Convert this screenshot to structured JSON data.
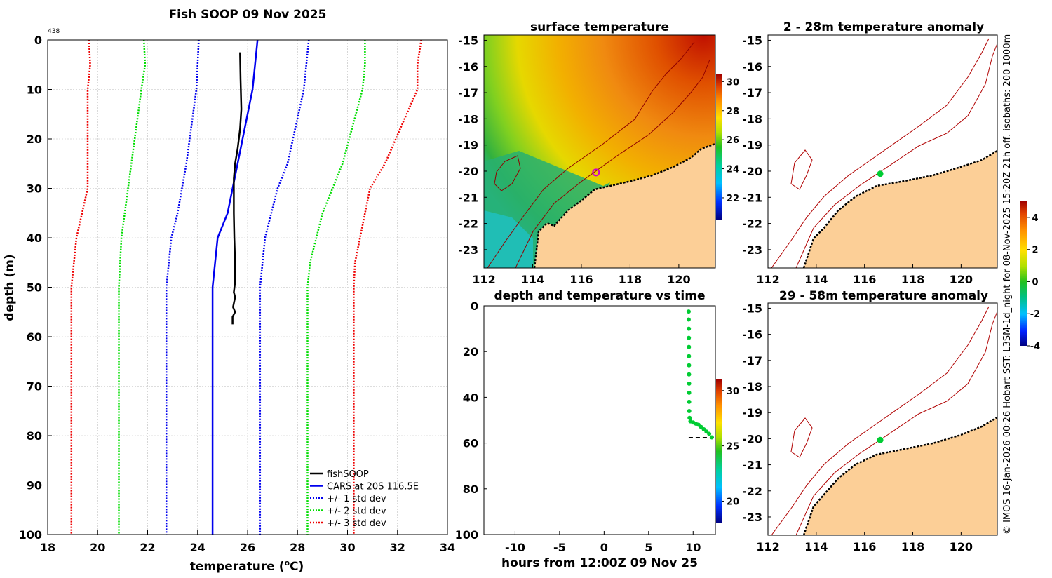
{
  "colors": {
    "fishsoop": "#000000",
    "cars": "#0000ee",
    "std1": "#0000ee",
    "std2": "#00dd00",
    "std3": "#ee0000",
    "land": "#fccf97",
    "isobath": "#b00000",
    "marker": "#00cc33",
    "grid": "#cccccc"
  },
  "copyright": "© IMOS 16-Jan-2026 00:26 Hobart SST: L3SM-1d_night for 08-Nov-2025 15:20Z 21h off. isobaths: 200  1000m",
  "chart_data": [
    {
      "id": "profile",
      "type": "line",
      "title": "Fish SOOP 09 Nov 2025",
      "id_label": "438",
      "xlabel": "temperature (°C)",
      "xlabel_main": "temperature (",
      "xlabel_sup": "o",
      "xlabel_end": "C)",
      "ylabel": "depth (m)",
      "xlim": [
        18,
        34
      ],
      "ylim": [
        0,
        100
      ],
      "y_reversed": true,
      "xticks": [
        18,
        20,
        22,
        24,
        26,
        28,
        30,
        32,
        34
      ],
      "yticks": [
        0,
        10,
        20,
        30,
        40,
        50,
        60,
        70,
        80,
        90,
        100
      ],
      "grid": true,
      "legend_position": "bottom-right",
      "series": [
        {
          "name": "fishSOOP",
          "style": "solid",
          "color": "#000000",
          "points": [
            [
              25.7,
              2.5
            ],
            [
              25.72,
              8
            ],
            [
              25.75,
              14
            ],
            [
              25.7,
              18
            ],
            [
              25.6,
              22
            ],
            [
              25.5,
              25
            ],
            [
              25.45,
              28
            ],
            [
              25.45,
              35
            ],
            [
              25.47,
              40
            ],
            [
              25.5,
              45
            ],
            [
              25.5,
              49
            ],
            [
              25.45,
              51
            ],
            [
              25.5,
              52
            ],
            [
              25.42,
              54
            ],
            [
              25.5,
              55
            ],
            [
              25.4,
              56
            ],
            [
              25.4,
              57.5
            ]
          ]
        },
        {
          "name": "CARS at 20S 116.5E",
          "style": "solid",
          "color": "#0000ee",
          "points": [
            [
              26.4,
              0
            ],
            [
              26.2,
              10
            ],
            [
              25.6,
              25
            ],
            [
              25.2,
              35
            ],
            [
              24.8,
              40
            ],
            [
              24.6,
              50
            ],
            [
              24.6,
              60
            ],
            [
              24.6,
              100
            ]
          ]
        },
        {
          "name": "+/- 1 std dev",
          "style": "dotted",
          "color": "#0000ee",
          "lower": [
            [
              24.05,
              0
            ],
            [
              23.95,
              10
            ],
            [
              23.55,
              25
            ],
            [
              23.2,
              35
            ],
            [
              22.95,
              40
            ],
            [
              22.75,
              50
            ],
            [
              22.75,
              60
            ],
            [
              22.75,
              100
            ]
          ],
          "upper": [
            [
              28.45,
              0
            ],
            [
              28.25,
              10
            ],
            [
              27.6,
              25
            ],
            [
              27.2,
              30
            ],
            [
              26.7,
              40
            ],
            [
              26.5,
              50
            ],
            [
              26.5,
              60
            ],
            [
              26.5,
              100
            ]
          ]
        },
        {
          "name": "+/- 2 std dev",
          "style": "dotted",
          "color": "#00dd00",
          "lower": [
            [
              21.85,
              0
            ],
            [
              21.9,
              5
            ],
            [
              21.75,
              10
            ],
            [
              21.35,
              25
            ],
            [
              20.95,
              40
            ],
            [
              20.85,
              50
            ],
            [
              20.85,
              60
            ],
            [
              20.85,
              100
            ]
          ],
          "upper": [
            [
              30.7,
              0
            ],
            [
              30.7,
              5
            ],
            [
              30.6,
              10
            ],
            [
              29.8,
              25
            ],
            [
              29.0,
              35
            ],
            [
              28.5,
              45
            ],
            [
              28.4,
              50
            ],
            [
              28.4,
              100
            ]
          ]
        },
        {
          "name": "+/- 3 std dev",
          "style": "dotted",
          "color": "#ee0000",
          "lower": [
            [
              19.65,
              0
            ],
            [
              19.7,
              5
            ],
            [
              19.6,
              10
            ],
            [
              19.6,
              30
            ],
            [
              19.15,
              40
            ],
            [
              18.95,
              50
            ],
            [
              18.95,
              60
            ],
            [
              18.95,
              100
            ]
          ],
          "upper": [
            [
              32.95,
              0
            ],
            [
              32.8,
              5
            ],
            [
              32.8,
              10
            ],
            [
              31.5,
              25
            ],
            [
              30.9,
              30
            ],
            [
              30.3,
              45
            ],
            [
              30.25,
              50
            ],
            [
              30.25,
              100
            ]
          ]
        }
      ]
    },
    {
      "id": "sst",
      "type": "heatmap",
      "title": "surface temperature",
      "xlim": [
        112,
        121.5
      ],
      "ylim": [
        -23.7,
        -14.8
      ],
      "xticks": [
        112,
        114,
        116,
        118,
        120
      ],
      "yticks": [
        -15,
        -16,
        -17,
        -18,
        -19,
        -20,
        -21,
        -22,
        -23
      ],
      "colorbar": {
        "min": 20.5,
        "max": 30.5,
        "ticks": [
          22,
          24,
          26,
          28,
          30
        ]
      },
      "station": {
        "lon": 116.6,
        "lat": -20.05
      }
    },
    {
      "id": "timeseries",
      "type": "scatter",
      "title": "depth and temperature vs time",
      "xlabel": "hours from 12:00Z 09 Nov 25",
      "xlim": [
        -13.5,
        12.5
      ],
      "ylim": [
        0,
        100
      ],
      "y_reversed": true,
      "xticks": [
        -10,
        -5,
        0,
        5,
        10
      ],
      "xtick_labels": [
        "-10",
        "-5",
        "0",
        "5",
        "10"
      ],
      "yticks": [
        0,
        20,
        40,
        60,
        80,
        100
      ],
      "colorbar": {
        "min": 18,
        "max": 31,
        "ticks": [
          20,
          25,
          30
        ]
      },
      "dashed_depth": 57.5,
      "dashed_x": [
        9.5,
        12.5
      ],
      "points": [
        [
          9.5,
          2.5
        ],
        [
          9.5,
          6
        ],
        [
          9.52,
          10
        ],
        [
          9.52,
          14
        ],
        [
          9.53,
          18
        ],
        [
          9.53,
          22
        ],
        [
          9.54,
          26
        ],
        [
          9.54,
          30
        ],
        [
          9.55,
          34
        ],
        [
          9.55,
          38
        ],
        [
          9.55,
          42
        ],
        [
          9.56,
          46
        ],
        [
          9.6,
          49
        ],
        [
          9.7,
          50.5
        ],
        [
          10.0,
          51
        ],
        [
          10.3,
          51.5
        ],
        [
          10.6,
          52
        ],
        [
          10.9,
          53
        ],
        [
          11.2,
          54
        ],
        [
          11.5,
          55
        ],
        [
          11.8,
          56
        ],
        [
          12.1,
          57.5
        ]
      ]
    },
    {
      "id": "anom1",
      "type": "heatmap",
      "title": "2 - 28m temperature anomaly",
      "xlim": [
        112,
        121.5
      ],
      "ylim": [
        -23.7,
        -14.8
      ],
      "xticks": [
        112,
        114,
        116,
        118,
        120
      ],
      "yticks": [
        -15,
        -16,
        -17,
        -18,
        -19,
        -20,
        -21,
        -22,
        -23
      ],
      "colorbar": {
        "min": -4,
        "max": 5,
        "ticks": [
          4,
          2,
          0,
          -2,
          -4
        ]
      },
      "station": {
        "lon": 116.65,
        "lat": -20.1
      }
    },
    {
      "id": "anom2",
      "type": "heatmap",
      "title": "29 - 58m temperature anomaly",
      "xlim": [
        112,
        121.5
      ],
      "ylim": [
        -23.7,
        -14.8
      ],
      "xticks": [
        112,
        114,
        116,
        118,
        120
      ],
      "yticks": [
        -15,
        -16,
        -17,
        -18,
        -19,
        -20,
        -21,
        -22,
        -23
      ],
      "station": {
        "lon": 116.65,
        "lat": -20.05
      }
    }
  ]
}
